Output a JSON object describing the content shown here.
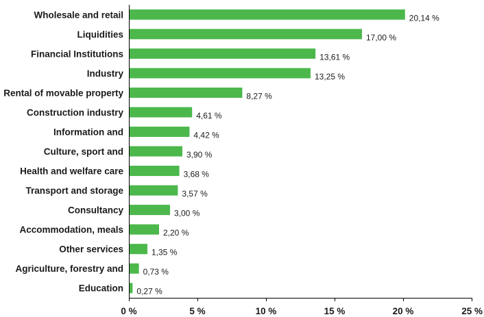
{
  "chart_data": {
    "type": "bar",
    "orientation": "horizontal",
    "title": "",
    "xlabel": "",
    "ylabel": "",
    "categories": [
      "Wholesale and retail",
      "Liquidities",
      "Financial Institutions",
      "Industry",
      "Rental of movable property",
      "Construction industry",
      "Information and",
      "Culture, sport and",
      "Health and welfare care",
      "Transport and storage",
      "Consultancy",
      "Accommodation, meals",
      "Other services",
      "Agriculture, forestry and",
      "Education"
    ],
    "values": [
      20.14,
      17.0,
      13.61,
      13.25,
      8.27,
      4.61,
      4.42,
      3.9,
      3.68,
      3.57,
      3.0,
      2.2,
      1.35,
      0.73,
      0.27
    ],
    "value_labels": [
      "20,14 %",
      "17,00 %",
      "13,61 %",
      "13,25 %",
      "8,27 %",
      "4,61 %",
      "4,42 %",
      "3,90 %",
      "3,68 %",
      "3,57 %",
      "3,00 %",
      "2,20 %",
      "1,35 %",
      "0,73 %",
      "0,27 %"
    ],
    "xlim": [
      0,
      25
    ],
    "x_ticks": [
      0,
      5,
      10,
      15,
      20,
      25
    ],
    "x_tick_labels": [
      "0 %",
      "5 %",
      "10 %",
      "15 %",
      "20 %",
      "25 %"
    ],
    "grid": false,
    "legend": "none",
    "colors": {
      "bar": "#4cb84c",
      "text": "#1a1a1a",
      "axis": "#000000"
    }
  }
}
